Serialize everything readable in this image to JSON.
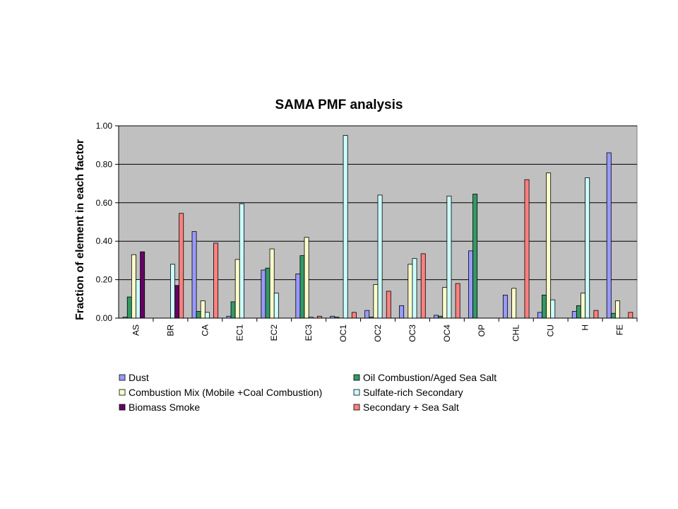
{
  "chart_data": {
    "type": "bar",
    "title": "SAMA PMF analysis",
    "xlabel": "",
    "ylabel": "Fraction of element in each factor",
    "ylim": [
      0,
      1
    ],
    "yticks": [
      "0.00",
      "0.20",
      "0.40",
      "0.60",
      "0.80",
      "1.00"
    ],
    "grid": true,
    "legend_position": "bottom",
    "categories": [
      "AS",
      "BR",
      "CA",
      "EC1",
      "EC2",
      "EC3",
      "OC1",
      "OC2",
      "OC3",
      "OC4",
      "OP",
      "CHL",
      "CU",
      "H",
      "FE"
    ],
    "series": [
      {
        "name": "Dust",
        "color": "#9999ff",
        "values": [
          0.005,
          0,
          0.45,
          0.01,
          0.25,
          0.23,
          0.01,
          0.04,
          0.065,
          0.015,
          0.35,
          0.12,
          0.03,
          0.035,
          0.86
        ]
      },
      {
        "name": "Oil Combustion/Aged Sea Salt",
        "color": "#339966",
        "values": [
          0.11,
          0,
          0.035,
          0.085,
          0.26,
          0.325,
          0.005,
          0.005,
          0,
          0.01,
          0.645,
          0,
          0.12,
          0.065,
          0.025
        ]
      },
      {
        "name": "Combustion Mix (Mobile +Coal Combustion)",
        "color": "#ffffcc",
        "values": [
          0.33,
          0,
          0.09,
          0.305,
          0.36,
          0.42,
          0,
          0.175,
          0.28,
          0.16,
          0,
          0.155,
          0.755,
          0.13,
          0.09
        ]
      },
      {
        "name": "Sulfate-rich Secondary",
        "color": "#ccffff",
        "values": [
          0.2,
          0.28,
          0.03,
          0.595,
          0.13,
          0.005,
          0.95,
          0.64,
          0.31,
          0.635,
          0,
          0,
          0.095,
          0.73,
          0
        ]
      },
      {
        "name": "Biomass Smoke",
        "color": "#660066",
        "values": [
          0.345,
          0.17,
          0,
          0,
          0,
          0,
          0,
          0,
          0,
          0,
          0,
          0,
          0,
          0,
          0
        ]
      },
      {
        "name": "Secondary + Sea Salt",
        "color": "#ff8080",
        "values": [
          0,
          0.545,
          0.39,
          0,
          0,
          0.01,
          0.03,
          0.14,
          0.335,
          0.18,
          0,
          0.72,
          0,
          0.04,
          0.03
        ]
      }
    ]
  },
  "colors": {
    "plot_background": "#c0c0c0",
    "gridline": "#000000",
    "bar_outline": "#000000"
  }
}
